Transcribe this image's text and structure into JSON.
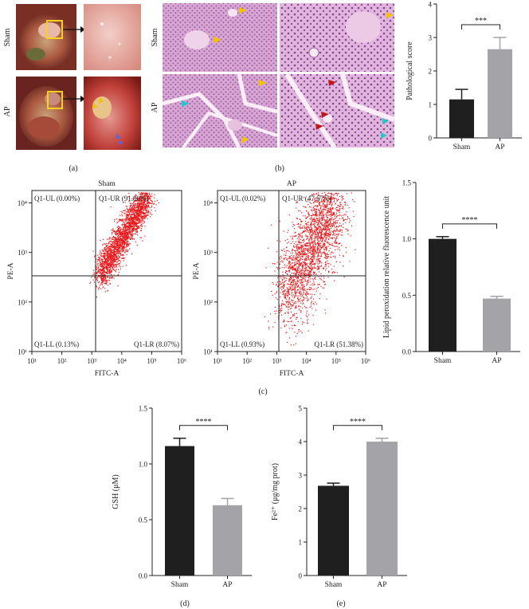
{
  "panel_labels": {
    "a": "(a)",
    "b": "(b)",
    "c": "(c)",
    "d": "(d)",
    "e": "(e)"
  },
  "row_labels": {
    "sham": "Sham",
    "ap": "AP"
  },
  "colors": {
    "sham_bar": "#1f1f1f",
    "ap_bar": "#a3a3a8",
    "flow_dots": "#e8191c",
    "arrow_yellow": "#f2c200",
    "arrow_cyan": "#2bc4c9",
    "arrow_red": "#c0181a",
    "tissue_bg": "#d9a7cf"
  },
  "chart_data": [
    {
      "id": "pathological",
      "type": "bar",
      "ylabel": "Pathological score",
      "categories": [
        "Sham",
        "AP"
      ],
      "values": [
        1.15,
        2.65
      ],
      "errors": [
        0.3,
        0.35
      ],
      "ylim": [
        0,
        4
      ],
      "yticks": [
        "0",
        "1",
        "2",
        "3",
        "4"
      ],
      "significance": "***"
    },
    {
      "id": "lipid",
      "type": "bar",
      "ylabel": "Lipid peroxidation relative fluorescence unit",
      "categories": [
        "Sham",
        "AP"
      ],
      "values": [
        1.0,
        0.47
      ],
      "errors": [
        0.02,
        0.02
      ],
      "ylim": [
        0,
        1.5
      ],
      "yticks": [
        "0.0",
        "0.5",
        "1.0",
        "1.5"
      ],
      "significance": "****"
    },
    {
      "id": "gsh",
      "type": "bar",
      "ylabel": "GSH (μM)",
      "categories": [
        "Sham",
        "AP"
      ],
      "values": [
        1.16,
        0.63
      ],
      "errors": [
        0.07,
        0.06
      ],
      "ylim": [
        0,
        1.5
      ],
      "yticks": [
        "0.0",
        "0.5",
        "1.0",
        "1.5"
      ],
      "significance": "****"
    },
    {
      "id": "fe",
      "type": "bar",
      "ylabel": "Fe²⁺ (μg/mg prot)",
      "categories": [
        "Sham",
        "AP"
      ],
      "values": [
        2.68,
        4.0
      ],
      "errors": [
        0.08,
        0.1
      ],
      "ylim": [
        0,
        5
      ],
      "yticks": [
        "0",
        "1",
        "2",
        "3",
        "4",
        "5"
      ],
      "significance": "****"
    },
    {
      "id": "flow_sham",
      "type": "scatter",
      "title": "Sham",
      "xlabel": "FITC-A",
      "ylabel": "PE-A",
      "scale": "log",
      "xticks": [
        "10¹",
        "10²",
        "10³",
        "10⁴",
        "10⁵",
        "10⁶"
      ],
      "yticks": [
        "10¹",
        "10²",
        "10³",
        "10⁴"
      ],
      "quadrants": {
        "UL": "Q1-UL (0.00%)",
        "UR": "Q1-UR (91.80%)",
        "LL": "Q1-LL (0.13%)",
        "LR": "Q1-LR (8.07%)"
      }
    },
    {
      "id": "flow_ap",
      "type": "scatter",
      "title": "AP",
      "xlabel": "FITC-A",
      "ylabel": "PE-A",
      "scale": "log",
      "xticks": [
        "10¹",
        "10²",
        "10³",
        "10⁴",
        "10⁵",
        "10⁶"
      ],
      "yticks": [
        "10¹",
        "10²",
        "10³",
        "10⁴"
      ],
      "quadrants": {
        "UL": "Q1-UL (0.02%)",
        "UR": "Q1-UR (47.67%)",
        "LL": "Q1-LL (0.93%)",
        "LR": "Q1-LR (51.38%)"
      }
    }
  ]
}
